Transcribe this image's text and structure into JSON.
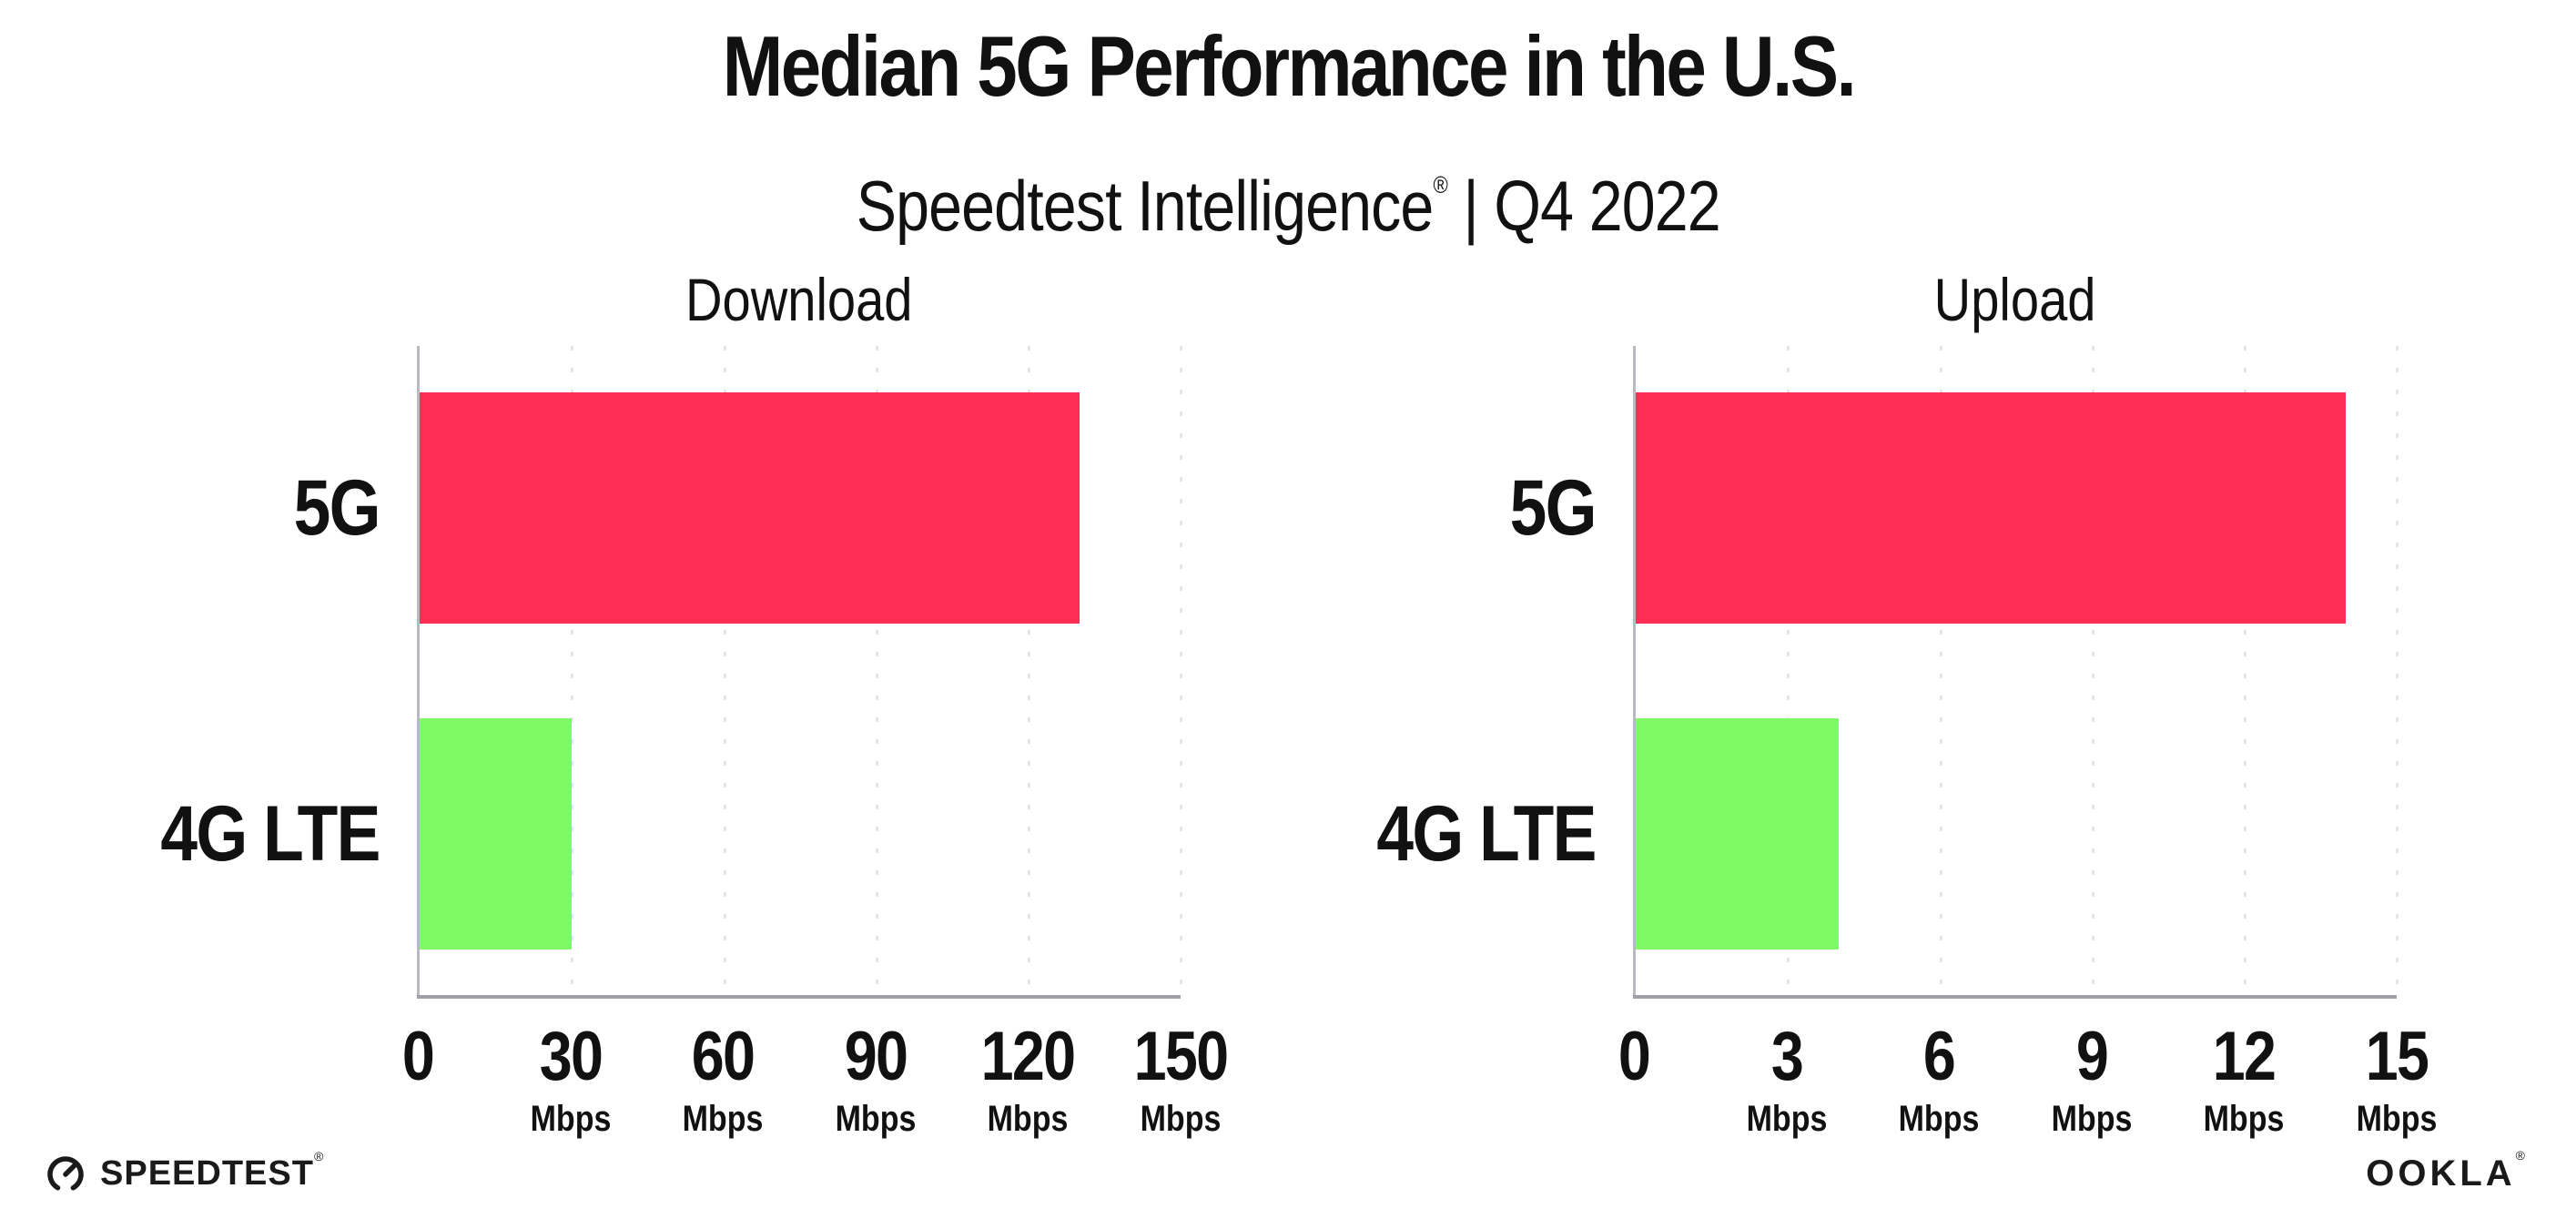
{
  "header": {
    "title": "Median 5G Performance in the U.S.",
    "subtitle_brand": "Speedtest Intelligence",
    "subtitle_reg": "®",
    "subtitle_rest": " | Q4 2022"
  },
  "footer": {
    "speedtest_label": "SPEEDTEST",
    "speedtest_reg": "®",
    "ookla_label": "OOKLA",
    "ookla_reg": "®"
  },
  "colors": {
    "bar_5g": "#ff2e57",
    "bar_4g_lte": "#7ff866",
    "gridline": "#e4e4ec",
    "y_axis": "#b9b9c0",
    "x_axis": "#9da0a8",
    "text": "#111111",
    "background": "#ffffff"
  },
  "chart_data": [
    {
      "type": "bar",
      "orientation": "horizontal",
      "title": "Download",
      "categories": [
        "5G",
        "4G LTE"
      ],
      "values": [
        130,
        30
      ],
      "unit": "Mbps",
      "xlim": [
        0,
        150
      ],
      "xticks": [
        0,
        30,
        60,
        90,
        120,
        150
      ],
      "grid": "dotted-vertical",
      "legend": "none",
      "series_colors": [
        "#ff2e57",
        "#7ff866"
      ]
    },
    {
      "type": "bar",
      "orientation": "horizontal",
      "title": "Upload",
      "categories": [
        "5G",
        "4G LTE"
      ],
      "values": [
        14,
        4
      ],
      "unit": "Mbps",
      "xlim": [
        0,
        15
      ],
      "xticks": [
        0,
        3,
        6,
        9,
        12,
        15
      ],
      "grid": "dotted-vertical",
      "legend": "none",
      "series_colors": [
        "#ff2e57",
        "#7ff866"
      ]
    }
  ]
}
